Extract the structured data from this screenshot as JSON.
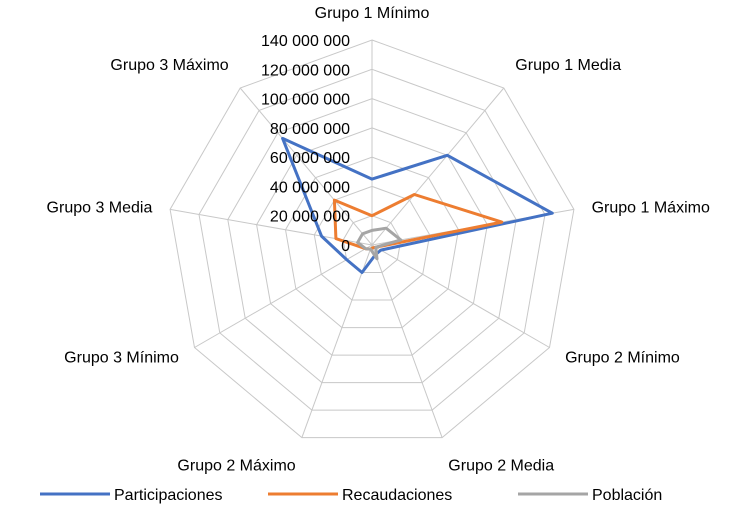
{
  "chart_data": {
    "type": "radar",
    "title": "",
    "categories": [
      "Grupo 1 Mínimo",
      "Grupo 1 Media",
      "Grupo 1 Máximo",
      "Grupo 2 Mínimo",
      "Grupo 2 Media",
      "Grupo 2 Máximo",
      "Grupo 3 Mínimo",
      "Grupo 3 Media",
      "Grupo 3 Máximo"
    ],
    "axis": {
      "min": 0,
      "max": 140000000,
      "step": 20000000,
      "tick_labels": [
        "0",
        "20 000 000",
        "40 000 000",
        "60 000 000",
        "80 000 000",
        "100 000 000",
        "120 000 000",
        "140 000 000"
      ]
    },
    "grid": true,
    "legend_position": "bottom",
    "series": [
      {
        "name": "Participaciones",
        "color": "#4472C4",
        "values": [
          45000000,
          80000000,
          125000000,
          7000000,
          7000000,
          20000000,
          20000000,
          35000000,
          95000000
        ]
      },
      {
        "name": "Recaudaciones",
        "color": "#ED7D31",
        "values": [
          20000000,
          45000000,
          90000000,
          3000000,
          2000000,
          3000000,
          5000000,
          25000000,
          40000000
        ]
      },
      {
        "name": "Población",
        "color": "#A5A5A5",
        "values": [
          10000000,
          15000000,
          20000000,
          3000000,
          10000000,
          3000000,
          5000000,
          10000000,
          10000000
        ]
      }
    ]
  }
}
